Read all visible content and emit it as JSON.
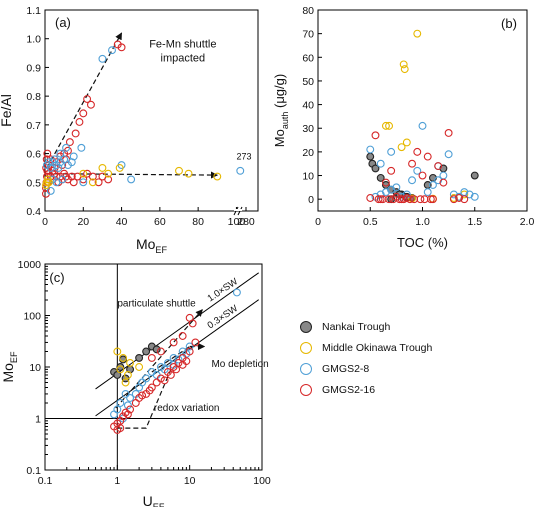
{
  "legend": {
    "items": [
      {
        "label": "Nankai Trough",
        "stroke": "#222222",
        "fill": "#888888"
      },
      {
        "label": "Middle Okinawa Trough",
        "stroke": "#e6b800",
        "fill": "none"
      },
      {
        "label": "GMGS2-8",
        "stroke": "#4f9fd6",
        "fill": "none"
      },
      {
        "label": "GMGS2-16",
        "stroke": "#d62728",
        "fill": "none"
      }
    ]
  },
  "chart_data": [
    {
      "panel": "(a)",
      "type": "scatter",
      "xlabel": "Mo",
      "xlabel_sub": "EF",
      "ylabel": "Fe/Al",
      "xlim": [
        0,
        105
      ],
      "ylim": [
        0.4,
        1.1
      ],
      "x_ticks": [
        "0",
        "20",
        "40",
        "60",
        "80",
        "100",
        "280"
      ],
      "y_ticks": [
        "0.4",
        "0.5",
        "0.6",
        "0.7",
        "0.8",
        "0.9",
        "1.0",
        "1.1"
      ],
      "axis_break": true,
      "annotations": [
        "Fe-Mn shuttle",
        "impacted",
        "273"
      ],
      "series": [
        {
          "name": "GMGS2-16",
          "color": "#d62728",
          "points": [
            [
              0.5,
              0.48
            ],
            [
              0.8,
              0.5
            ],
            [
              1,
              0.52
            ],
            [
              1.2,
              0.54
            ],
            [
              1.5,
              0.5
            ],
            [
              0.6,
              0.55
            ],
            [
              0.9,
              0.58
            ],
            [
              1.2,
              0.6
            ],
            [
              0.5,
              0.46
            ],
            [
              2,
              0.53
            ],
            [
              3,
              0.52
            ],
            [
              4,
              0.51
            ],
            [
              5,
              0.53
            ],
            [
              6,
              0.52
            ],
            [
              7,
              0.5
            ],
            [
              8,
              0.52
            ],
            [
              9,
              0.51
            ],
            [
              10,
              0.53
            ],
            [
              11,
              0.52
            ],
            [
              12,
              0.51
            ],
            [
              14,
              0.52
            ],
            [
              15,
              0.5
            ],
            [
              17,
              0.52
            ],
            [
              20,
              0.51
            ],
            [
              22,
              0.53
            ],
            [
              25,
              0.52
            ],
            [
              28,
              0.5
            ],
            [
              30,
              0.52
            ],
            [
              33,
              0.51
            ],
            [
              5,
              0.55
            ],
            [
              6,
              0.57
            ],
            [
              8,
              0.59
            ],
            [
              10,
              0.6
            ],
            [
              12,
              0.61
            ],
            [
              13,
              0.64
            ],
            [
              16,
              0.67
            ],
            [
              18,
              0.71
            ],
            [
              20,
              0.74
            ],
            [
              22,
              0.79
            ],
            [
              24,
              0.77
            ],
            [
              38,
              0.98
            ],
            [
              40,
              0.97
            ],
            [
              2,
              0.56
            ],
            [
              3,
              0.58
            ],
            [
              4,
              0.54
            ],
            [
              9,
              0.56
            ],
            [
              11,
              0.58
            ]
          ]
        },
        {
          "name": "GMGS2-8",
          "color": "#4f9fd6",
          "points": [
            [
              1,
              0.56
            ],
            [
              2,
              0.57
            ],
            [
              3,
              0.55
            ],
            [
              4,
              0.57
            ],
            [
              5,
              0.58
            ],
            [
              6,
              0.56
            ],
            [
              7,
              0.55
            ],
            [
              8,
              0.57
            ],
            [
              10,
              0.58
            ],
            [
              12,
              0.56
            ],
            [
              14,
              0.57
            ],
            [
              15,
              0.59
            ],
            [
              8,
              0.6
            ],
            [
              11,
              0.62
            ],
            [
              19,
              0.62
            ],
            [
              30,
              0.93
            ],
            [
              35,
              0.96
            ],
            [
              4,
              0.51
            ],
            [
              6,
              0.5
            ],
            [
              9,
              0.51
            ],
            [
              20,
              0.5
            ],
            [
              40,
              0.56
            ],
            [
              45,
              0.51
            ],
            [
              3,
              0.47
            ],
            [
              102,
              0.54
            ]
          ]
        },
        {
          "name": "Middle Okinawa Trough",
          "color": "#e6b800",
          "points": [
            [
              0.5,
              0.49
            ],
            [
              1,
              0.5
            ],
            [
              1.5,
              0.51
            ],
            [
              2,
              0.5
            ],
            [
              30,
              0.55
            ],
            [
              33,
              0.53
            ],
            [
              39,
              0.55
            ],
            [
              70,
              0.54
            ],
            [
              75,
              0.53
            ],
            [
              90,
              0.52
            ],
            [
              20,
              0.53
            ],
            [
              25,
              0.5
            ]
          ]
        }
      ]
    },
    {
      "panel": "(b)",
      "type": "scatter",
      "xlabel": "TOC (%)",
      "ylabel": "Mo",
      "ylabel_sub": "auth",
      "ylabel_unit": "(μg/g)",
      "xlim": [
        0,
        2.0
      ],
      "ylim": [
        -5,
        80
      ],
      "x_ticks": [
        "0",
        "0.5",
        "1.0",
        "1.5",
        "2.0"
      ],
      "y_ticks": [
        "0",
        "10",
        "20",
        "30",
        "40",
        "50",
        "60",
        "70",
        "80"
      ],
      "series": [
        {
          "name": "Nankai Trough",
          "color": "#222222",
          "points": [
            [
              0.5,
              18
            ],
            [
              0.52,
              15
            ],
            [
              0.55,
              13
            ],
            [
              0.6,
              9
            ],
            [
              0.65,
              6
            ],
            [
              0.7,
              4
            ],
            [
              0.75,
              3
            ],
            [
              0.8,
              2
            ],
            [
              0.85,
              1
            ],
            [
              0.9,
              0.5
            ],
            [
              1.05,
              6
            ],
            [
              1.1,
              9
            ],
            [
              1.2,
              13
            ],
            [
              1.5,
              10
            ],
            [
              0.7,
              0
            ],
            [
              0.78,
              2
            ]
          ]
        },
        {
          "name": "Middle Okinawa Trough",
          "color": "#e6b800",
          "points": [
            [
              0.65,
              31
            ],
            [
              0.68,
              31
            ],
            [
              0.82,
              57
            ],
            [
              0.83,
              55
            ],
            [
              0.95,
              70
            ],
            [
              0.8,
              22
            ],
            [
              0.85,
              24
            ],
            [
              0.9,
              0.3
            ],
            [
              1.1,
              0.2
            ],
            [
              1.3,
              0.5
            ],
            [
              1.35,
              1
            ],
            [
              1.4,
              2
            ]
          ]
        },
        {
          "name": "GMGS2-8",
          "color": "#4f9fd6",
          "points": [
            [
              0.5,
              21
            ],
            [
              0.55,
              1
            ],
            [
              0.6,
              2
            ],
            [
              0.65,
              3
            ],
            [
              0.7,
              4
            ],
            [
              0.75,
              5
            ],
            [
              0.8,
              1
            ],
            [
              0.85,
              2
            ],
            [
              0.9,
              8
            ],
            [
              0.95,
              12
            ],
            [
              1.0,
              31
            ],
            [
              1.05,
              3
            ],
            [
              1.1,
              6
            ],
            [
              1.15,
              8
            ],
            [
              1.2,
              10
            ],
            [
              1.25,
              19
            ],
            [
              1.3,
              2
            ],
            [
              1.35,
              1
            ],
            [
              1.4,
              3
            ],
            [
              1.45,
              2
            ],
            [
              1.5,
              1
            ],
            [
              0.6,
              15
            ],
            [
              0.7,
              20
            ],
            [
              1.15,
              14
            ]
          ]
        },
        {
          "name": "GMGS2-16",
          "color": "#d62728",
          "points": [
            [
              0.5,
              0.5
            ],
            [
              0.55,
              27
            ],
            [
              0.6,
              0
            ],
            [
              0.65,
              7
            ],
            [
              0.7,
              12
            ],
            [
              0.75,
              1
            ],
            [
              0.8,
              0
            ],
            [
              0.85,
              0.5
            ],
            [
              0.9,
              15
            ],
            [
              0.95,
              20
            ],
            [
              1.0,
              10
            ],
            [
              1.05,
              18
            ],
            [
              1.1,
              0
            ],
            [
              1.15,
              14
            ],
            [
              1.2,
              7
            ],
            [
              1.25,
              28
            ],
            [
              1.3,
              0
            ],
            [
              1.35,
              0.5
            ],
            [
              1.4,
              0
            ],
            [
              0.58,
              0
            ],
            [
              0.62,
              0
            ],
            [
              0.68,
              0
            ],
            [
              0.72,
              0
            ],
            [
              0.78,
              0
            ],
            [
              0.82,
              0
            ],
            [
              0.88,
              0
            ],
            [
              0.92,
              0
            ],
            [
              0.98,
              0
            ],
            [
              1.02,
              0
            ],
            [
              1.08,
              0
            ]
          ]
        }
      ]
    },
    {
      "panel": "(c)",
      "type": "scatter",
      "log_scale": true,
      "xlabel": "U",
      "xlabel_sub": "EF",
      "ylabel": "Mo",
      "ylabel_sub": "EF",
      "xlim": [
        0.1,
        100
      ],
      "ylim": [
        0.1,
        1000
      ],
      "x_ticks": [
        "0.1",
        "1",
        "10",
        "100"
      ],
      "y_ticks": [
        "0.1",
        "1",
        "10",
        "100",
        "1000"
      ],
      "annotations": [
        "particulate shuttle",
        "Mo depletion",
        "redox variation"
      ],
      "reference_lines": [
        {
          "label": "1.0×SW",
          "ratio": 7.5
        },
        {
          "label": "0.3×SW",
          "ratio": 2.25
        }
      ],
      "series": [
        {
          "name": "Nankai Trough",
          "color": "#222222",
          "points": [
            [
              0.9,
              8
            ],
            [
              1.0,
              7
            ],
            [
              1.1,
              10
            ],
            [
              1.3,
              6
            ],
            [
              1.5,
              9
            ],
            [
              2,
              15
            ],
            [
              2.5,
              20
            ],
            [
              3,
              25
            ],
            [
              3.5,
              22
            ],
            [
              1.2,
              14
            ]
          ]
        },
        {
          "name": "Middle Okinawa Trough",
          "color": "#e6b800",
          "points": [
            [
              1.0,
              20
            ],
            [
              1.2,
              15
            ],
            [
              1.5,
              12
            ],
            [
              1.1,
              9
            ],
            [
              1.3,
              5
            ],
            [
              2,
              10
            ],
            [
              1.4,
              7
            ]
          ]
        },
        {
          "name": "GMGS2-8",
          "color": "#4f9fd6",
          "points": [
            [
              0.9,
              1.2
            ],
            [
              1.0,
              1.5
            ],
            [
              1.1,
              2
            ],
            [
              1.3,
              3
            ],
            [
              1.5,
              2.5
            ],
            [
              2,
              4
            ],
            [
              2.5,
              6
            ],
            [
              3,
              8
            ],
            [
              4,
              10
            ],
            [
              5,
              12
            ],
            [
              6,
              15
            ],
            [
              8,
              20
            ],
            [
              10,
              25
            ],
            [
              1.2,
              1
            ],
            [
              1.4,
              1.8
            ],
            [
              1.8,
              3
            ],
            [
              2.2,
              5
            ],
            [
              3.5,
              7
            ],
            [
              4.5,
              9
            ],
            [
              6,
              11
            ],
            [
              7,
              14
            ],
            [
              9,
              18
            ],
            [
              45,
              280
            ]
          ]
        },
        {
          "name": "GMGS2-16",
          "color": "#d62728",
          "points": [
            [
              0.9,
              0.7
            ],
            [
              1.0,
              0.8
            ],
            [
              1.1,
              0.9
            ],
            [
              1.2,
              1.1
            ],
            [
              1.3,
              1.3
            ],
            [
              1.5,
              1.5
            ],
            [
              1.8,
              2
            ],
            [
              2,
              2.5
            ],
            [
              2.5,
              3
            ],
            [
              3,
              4
            ],
            [
              3.5,
              5
            ],
            [
              4,
              6
            ],
            [
              5,
              8
            ],
            [
              6,
              10
            ],
            [
              7,
              12
            ],
            [
              8,
              15
            ],
            [
              10,
              20
            ],
            [
              12,
              30
            ],
            [
              10,
              90
            ],
            [
              11,
              70
            ],
            [
              1.0,
              0.6
            ],
            [
              1.1,
              0.65
            ],
            [
              1.4,
              1.2
            ],
            [
              2.2,
              2.8
            ],
            [
              2.8,
              3.5
            ],
            [
              4.5,
              5.5
            ],
            [
              5.5,
              7
            ],
            [
              6.5,
              9
            ],
            [
              8,
              11
            ],
            [
              9,
              13
            ],
            [
              3,
              15
            ],
            [
              4,
              20
            ],
            [
              6,
              30
            ],
            [
              8,
              40
            ]
          ]
        }
      ]
    }
  ]
}
